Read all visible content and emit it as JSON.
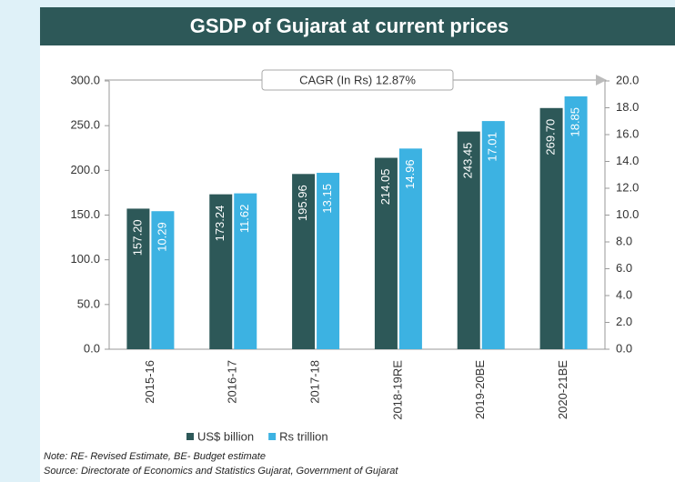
{
  "chart_data": {
    "type": "bar",
    "title": "GSDP of Gujarat at current prices",
    "annotation": "CAGR (In Rs) 12.87%",
    "categories": [
      "2015-16",
      "2016-17",
      "2017-18",
      "2018-19RE",
      "2019-20BE",
      "2020-21BE"
    ],
    "series": [
      {
        "name": "US$ billion",
        "color": "#2d5858",
        "axis": "y",
        "values": [
          157.2,
          173.24,
          195.96,
          214.05,
          243.45,
          269.7
        ],
        "value_labels": [
          "157.20",
          "173.24",
          "195.96",
          "214.05",
          "243.45",
          "269.70"
        ]
      },
      {
        "name": "Rs trillion",
        "color": "#3cb2e2",
        "axis": "y2",
        "values": [
          10.29,
          11.62,
          13.15,
          14.96,
          17.01,
          18.85
        ],
        "value_labels": [
          "10.29",
          "11.62",
          "13.15",
          "14.96",
          "17.01",
          "18.85"
        ]
      }
    ],
    "ylim": [
      0,
      300
    ],
    "yticks": [
      {
        "value": 0,
        "label": "0.0"
      },
      {
        "value": 50,
        "label": "50.0"
      },
      {
        "value": 100,
        "label": "100.0"
      },
      {
        "value": 150,
        "label": "150.0"
      },
      {
        "value": 200,
        "label": "200.0"
      },
      {
        "value": 250,
        "label": "250.0"
      },
      {
        "value": 300,
        "label": "300.0"
      }
    ],
    "y2lim": [
      0,
      20
    ],
    "y2ticks": [
      {
        "value": 0,
        "label": "0.0"
      },
      {
        "value": 2,
        "label": "2.0"
      },
      {
        "value": 4,
        "label": "4.0"
      },
      {
        "value": 6,
        "label": "6.0"
      },
      {
        "value": 8,
        "label": "8.0"
      },
      {
        "value": 10,
        "label": "10.0"
      },
      {
        "value": 12,
        "label": "12.0"
      },
      {
        "value": 14,
        "label": "14.0"
      },
      {
        "value": 16,
        "label": "16.0"
      },
      {
        "value": 18,
        "label": "18.0"
      },
      {
        "value": 20,
        "label": "20.0"
      }
    ],
    "legend": "bottom",
    "note": "Note: RE- Revised Estimate, BE- Budget estimate",
    "source": "Source: Directorate of Economics and Statistics Gujarat, Government of Gujarat"
  }
}
